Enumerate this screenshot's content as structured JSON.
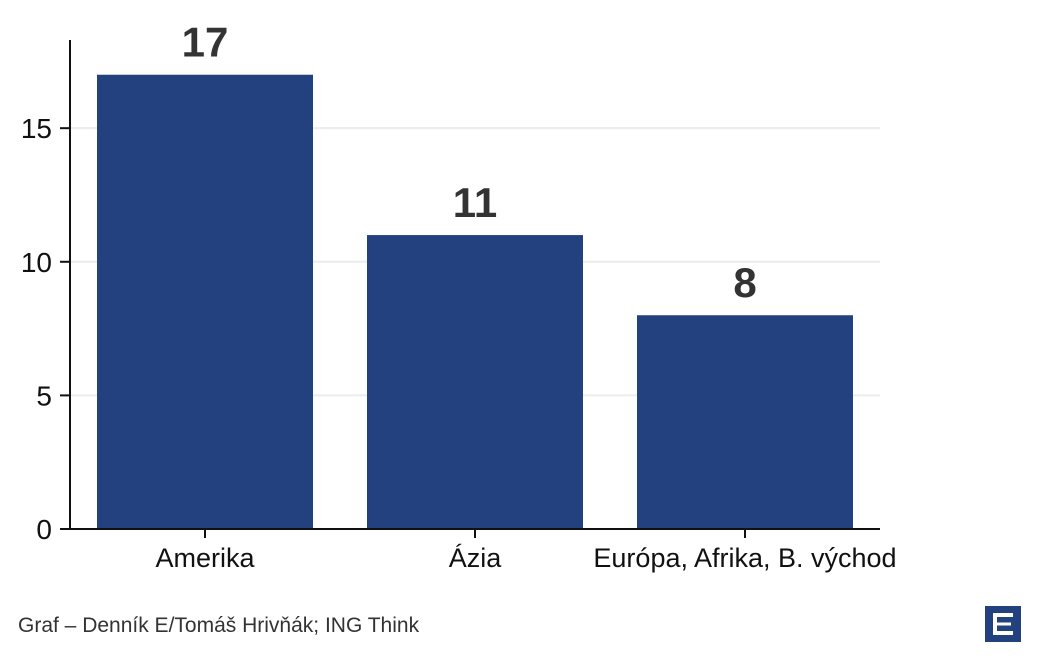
{
  "chart_data": {
    "type": "bar",
    "title": "",
    "xlabel": "",
    "ylabel": "",
    "categories": [
      "Amerika",
      "Ázia",
      "Európa, Afrika, B. východ"
    ],
    "values": [
      17,
      11,
      8
    ],
    "data_labels": [
      "17",
      "11",
      "8"
    ],
    "ylim": [
      0,
      18.3
    ],
    "yticks": [
      0,
      5,
      10,
      15
    ],
    "grid": "horizontal",
    "legend": "none",
    "bar_color": "#23417f",
    "gridline_color": "#ececec"
  },
  "footer": {
    "source": "Graf – Denník E/Tomáš Hrivňák; ING Think"
  },
  "brand": {
    "logo_icon": "denník-e-logo-icon",
    "logo_color": "#23417f"
  }
}
